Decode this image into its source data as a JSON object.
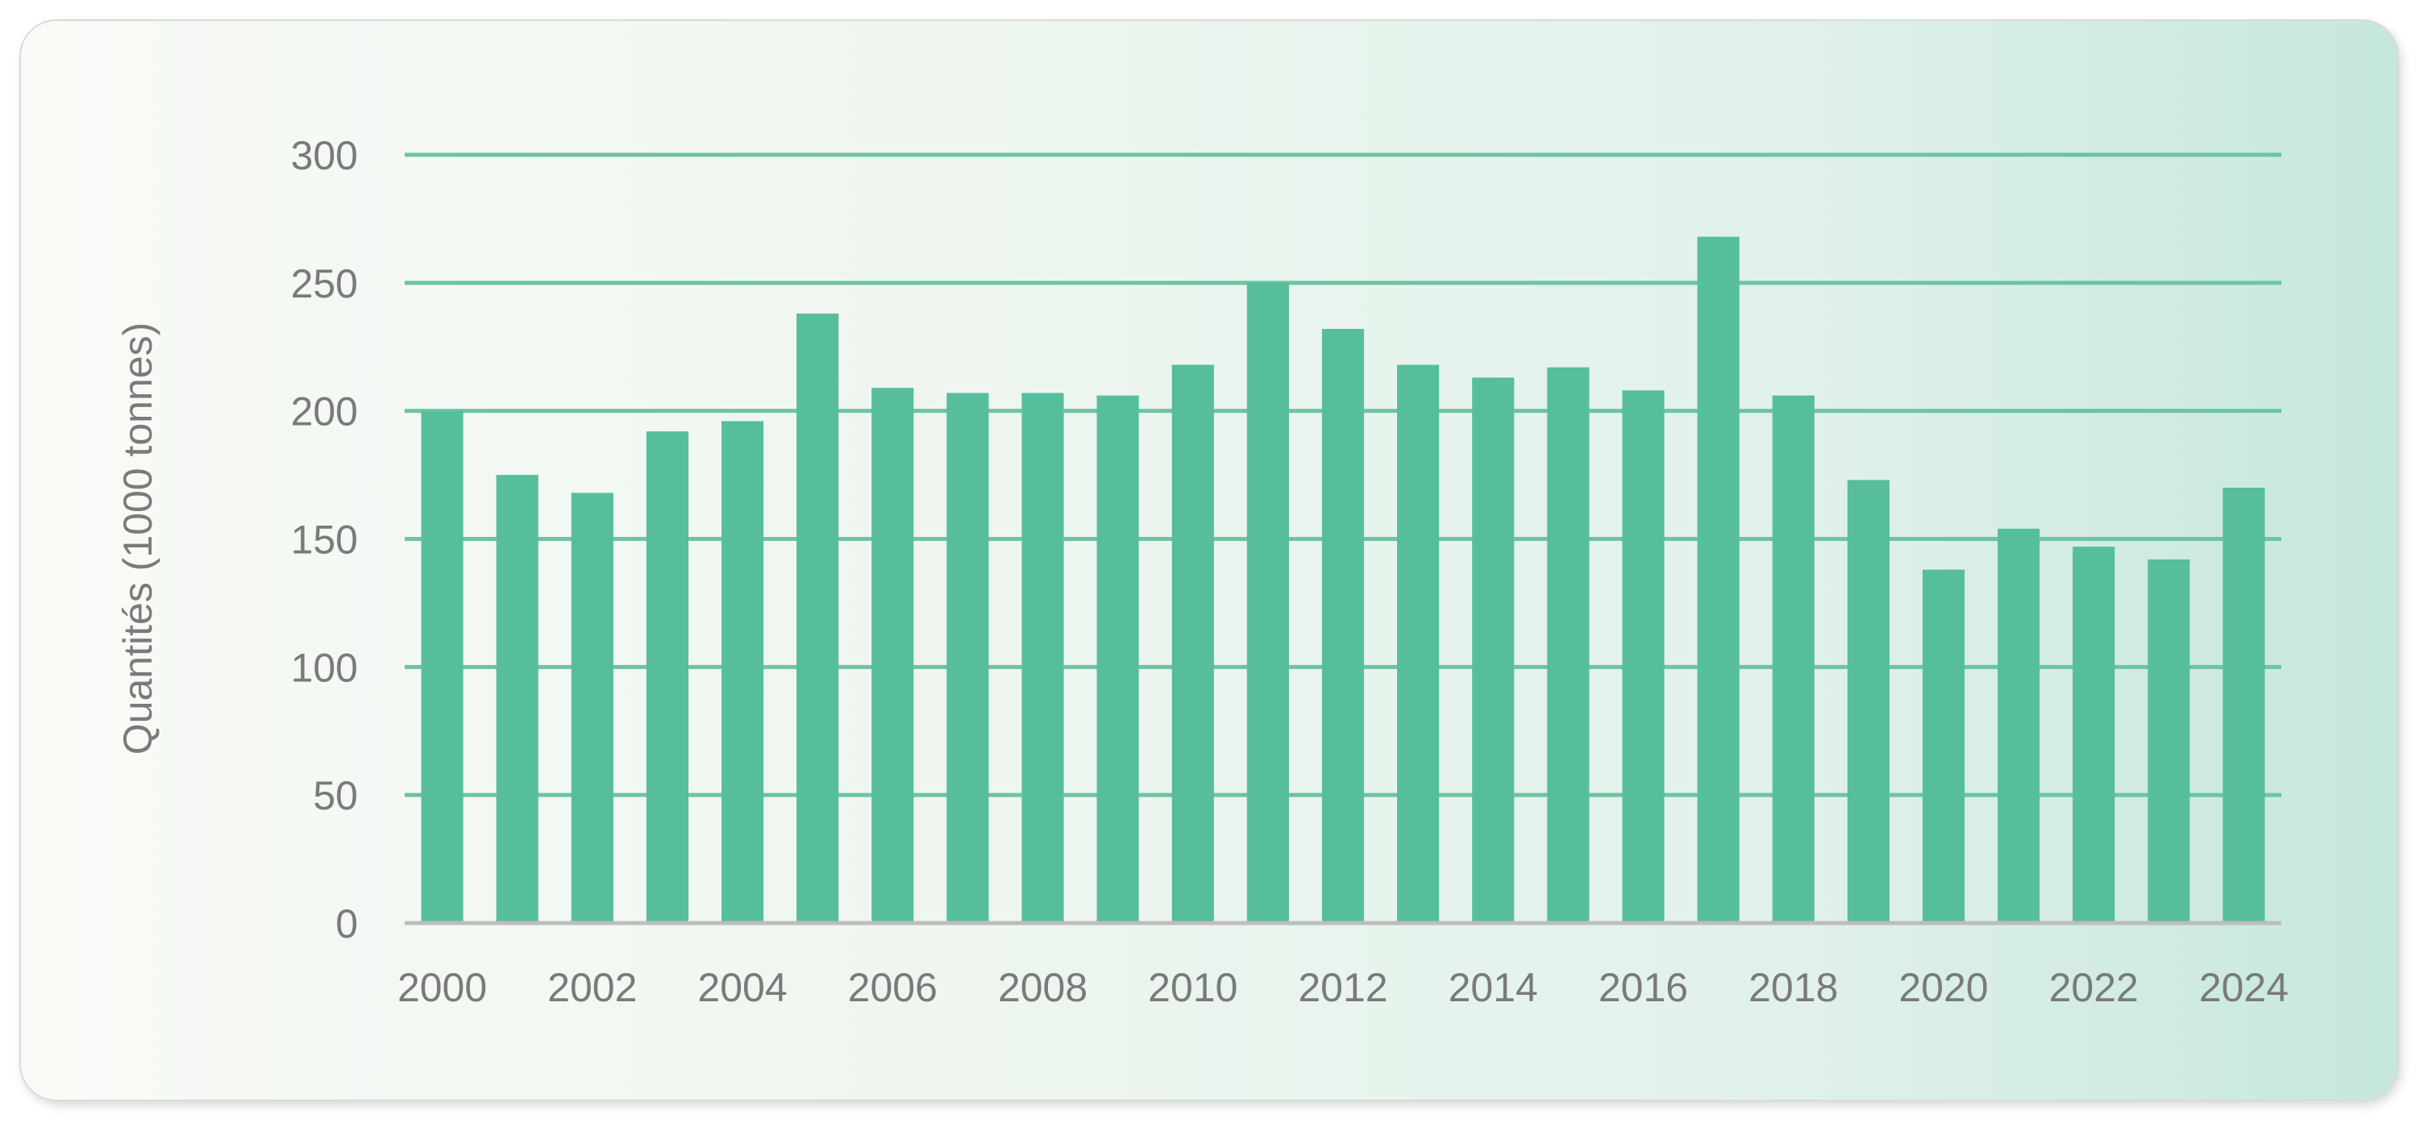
{
  "chart_data": {
    "type": "bar",
    "title": "",
    "xlabel": "",
    "ylabel": "Quantités (1000 tonnes)",
    "ylim": [
      0,
      300
    ],
    "yticks": [
      0,
      50,
      100,
      150,
      200,
      250,
      300
    ],
    "grid": true,
    "legend": "none",
    "categories": [
      "2000",
      "2001",
      "2002",
      "2003",
      "2004",
      "2005",
      "2006",
      "2007",
      "2008",
      "2009",
      "2010",
      "2011",
      "2012",
      "2013",
      "2014",
      "2015",
      "2016",
      "2017",
      "2018",
      "2019",
      "2020",
      "2021",
      "2022",
      "2023",
      "2024"
    ],
    "xtick_labels": [
      "2000",
      "2002",
      "2004",
      "2006",
      "2008",
      "2010",
      "2012",
      "2014",
      "2016",
      "2018",
      "2020",
      "2022",
      "2024"
    ],
    "values": [
      200,
      175,
      168,
      192,
      196,
      238,
      209,
      207,
      207,
      206,
      218,
      250,
      232,
      218,
      213,
      217,
      208,
      268,
      206,
      173,
      138,
      154,
      147,
      142,
      170
    ],
    "colors": {
      "bar": "#57be9d",
      "grid": "#6cc4a3",
      "axis": "#bdbdbd",
      "text": "#7a7a7a"
    }
  }
}
